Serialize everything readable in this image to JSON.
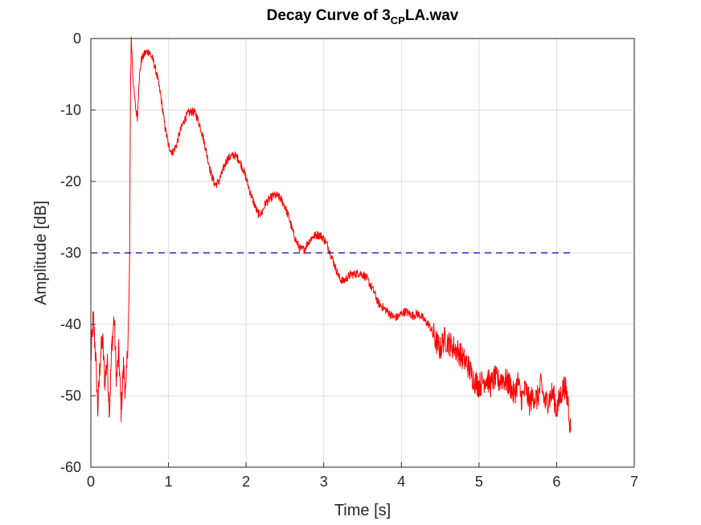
{
  "chart_data": {
    "type": "line",
    "title": {
      "main": "Decay Curve of 3",
      "subscript": "CP",
      "suffix": "LA.wav"
    },
    "xlabel": "Time [s]",
    "ylabel": "Amplitude [dB]",
    "xlim": [
      0,
      7
    ],
    "ylim": [
      -60,
      0
    ],
    "xticks": [
      0,
      1,
      2,
      3,
      4,
      5,
      6,
      7
    ],
    "yticks": [
      0,
      -10,
      -20,
      -30,
      -40,
      -50,
      -60
    ],
    "grid": true,
    "series": [
      {
        "color": "#ff0000",
        "style": "solid",
        "points": [
          [
            0.0,
            -45
          ],
          [
            0.03,
            -39
          ],
          [
            0.06,
            -44
          ],
          [
            0.09,
            -52
          ],
          [
            0.12,
            -45
          ],
          [
            0.15,
            -42
          ],
          [
            0.18,
            -48
          ],
          [
            0.21,
            -45
          ],
          [
            0.24,
            -52
          ],
          [
            0.27,
            -43
          ],
          [
            0.3,
            -39
          ],
          [
            0.33,
            -48
          ],
          [
            0.36,
            -44
          ],
          [
            0.39,
            -52
          ],
          [
            0.42,
            -46
          ],
          [
            0.45,
            -50
          ],
          [
            0.47,
            -44
          ],
          [
            0.49,
            -38
          ],
          [
            0.5,
            -30
          ],
          [
            0.51,
            -8
          ],
          [
            0.52,
            0
          ],
          [
            0.53,
            -2
          ],
          [
            0.54,
            -5
          ],
          [
            0.56,
            -8
          ],
          [
            0.58,
            -10
          ],
          [
            0.6,
            -11
          ],
          [
            0.62,
            -6
          ],
          [
            0.65,
            -3
          ],
          [
            0.7,
            -2
          ],
          [
            0.75,
            -1.8
          ],
          [
            0.8,
            -3
          ],
          [
            0.85,
            -5
          ],
          [
            0.9,
            -8
          ],
          [
            0.95,
            -12
          ],
          [
            1.0,
            -15
          ],
          [
            1.05,
            -16
          ],
          [
            1.1,
            -15
          ],
          [
            1.15,
            -13
          ],
          [
            1.2,
            -11.5
          ],
          [
            1.25,
            -10.5
          ],
          [
            1.3,
            -10.2
          ],
          [
            1.35,
            -10.5
          ],
          [
            1.4,
            -12
          ],
          [
            1.45,
            -14
          ],
          [
            1.5,
            -16.5
          ],
          [
            1.55,
            -19
          ],
          [
            1.6,
            -20.5
          ],
          [
            1.65,
            -20
          ],
          [
            1.7,
            -18.5
          ],
          [
            1.75,
            -17
          ],
          [
            1.8,
            -16.5
          ],
          [
            1.85,
            -16.3
          ],
          [
            1.9,
            -16.8
          ],
          [
            1.95,
            -18
          ],
          [
            2.0,
            -19.5
          ],
          [
            2.05,
            -21.5
          ],
          [
            2.1,
            -23
          ],
          [
            2.15,
            -24.5
          ],
          [
            2.2,
            -24.5
          ],
          [
            2.25,
            -23
          ],
          [
            2.3,
            -22.5
          ],
          [
            2.35,
            -22
          ],
          [
            2.4,
            -22
          ],
          [
            2.45,
            -22.5
          ],
          [
            2.5,
            -23.5
          ],
          [
            2.55,
            -25
          ],
          [
            2.6,
            -27
          ],
          [
            2.65,
            -28.5
          ],
          [
            2.7,
            -29.5
          ],
          [
            2.75,
            -29.5
          ],
          [
            2.8,
            -28.5
          ],
          [
            2.85,
            -27.8
          ],
          [
            2.9,
            -27.5
          ],
          [
            2.95,
            -27.5
          ],
          [
            3.0,
            -28
          ],
          [
            3.05,
            -29
          ],
          [
            3.1,
            -30.5
          ],
          [
            3.15,
            -32
          ],
          [
            3.2,
            -33.5
          ],
          [
            3.25,
            -34
          ],
          [
            3.3,
            -33.5
          ],
          [
            3.35,
            -33
          ],
          [
            3.4,
            -33
          ],
          [
            3.45,
            -32.8
          ],
          [
            3.5,
            -33
          ],
          [
            3.55,
            -33.5
          ],
          [
            3.6,
            -34.5
          ],
          [
            3.65,
            -35.5
          ],
          [
            3.7,
            -37
          ],
          [
            3.75,
            -37.5
          ],
          [
            3.8,
            -38
          ],
          [
            3.85,
            -38.5
          ],
          [
            3.9,
            -39
          ],
          [
            3.95,
            -39
          ],
          [
            4.0,
            -38.5
          ],
          [
            4.05,
            -38.2
          ],
          [
            4.1,
            -38.5
          ],
          [
            4.15,
            -38.8
          ],
          [
            4.2,
            -38.5
          ],
          [
            4.25,
            -38.8
          ],
          [
            4.3,
            -39.5
          ],
          [
            4.35,
            -40
          ],
          [
            4.4,
            -41
          ],
          [
            4.45,
            -42.5
          ],
          [
            4.5,
            -43.5
          ],
          [
            4.55,
            -42
          ],
          [
            4.6,
            -42.5
          ],
          [
            4.65,
            -43
          ],
          [
            4.7,
            -43.5
          ],
          [
            4.75,
            -44
          ],
          [
            4.8,
            -45
          ],
          [
            4.85,
            -45.5
          ],
          [
            4.9,
            -47
          ],
          [
            4.95,
            -48
          ],
          [
            5.0,
            -48.5
          ],
          [
            5.05,
            -48
          ],
          [
            5.1,
            -47.5
          ],
          [
            5.15,
            -48.5
          ],
          [
            5.2,
            -47.5
          ],
          [
            5.25,
            -48
          ],
          [
            5.3,
            -47.5
          ],
          [
            5.35,
            -48
          ],
          [
            5.4,
            -48.5
          ],
          [
            5.45,
            -50
          ],
          [
            5.5,
            -48
          ],
          [
            5.55,
            -50.5
          ],
          [
            5.6,
            -49
          ],
          [
            5.65,
            -51
          ],
          [
            5.7,
            -50
          ],
          [
            5.75,
            -50.5
          ],
          [
            5.8,
            -48.5
          ],
          [
            5.85,
            -51
          ],
          [
            5.9,
            -50.5
          ],
          [
            5.95,
            -49.5
          ],
          [
            6.0,
            -52
          ],
          [
            6.05,
            -50
          ],
          [
            6.1,
            -48.5
          ],
          [
            6.15,
            -51
          ],
          [
            6.18,
            -55
          ]
        ],
        "noise_band_db": 2.4
      },
      {
        "color": "#0000b4",
        "style": "dashed",
        "points": [
          [
            0.0,
            -30
          ],
          [
            6.18,
            -30
          ]
        ]
      }
    ]
  }
}
